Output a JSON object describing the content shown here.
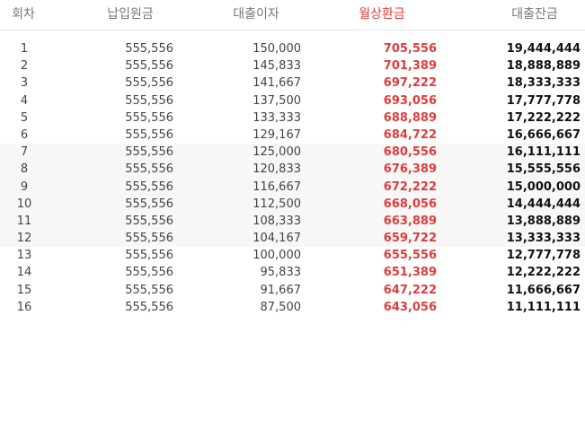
{
  "headers": {
    "round": "회차",
    "principal": "납입원금",
    "interest": "대출이자",
    "payment": "월상환금",
    "balance": "대출잔금"
  },
  "colors": {
    "payment_accent": "#e03c3c",
    "shaded_band": "#f7f7f7"
  },
  "rows": [
    {
      "round": "1",
      "principal": "555,556",
      "interest": "150,000",
      "payment": "705,556",
      "balance": "19,444,444"
    },
    {
      "round": "2",
      "principal": "555,556",
      "interest": "145,833",
      "payment": "701,389",
      "balance": "18,888,889"
    },
    {
      "round": "3",
      "principal": "555,556",
      "interest": "141,667",
      "payment": "697,222",
      "balance": "18,333,333"
    },
    {
      "round": "4",
      "principal": "555,556",
      "interest": "137,500",
      "payment": "693,056",
      "balance": "17,777,778"
    },
    {
      "round": "5",
      "principal": "555,556",
      "interest": "133,333",
      "payment": "688,889",
      "balance": "17,222,222"
    },
    {
      "round": "6",
      "principal": "555,556",
      "interest": "129,167",
      "payment": "684,722",
      "balance": "16,666,667"
    },
    {
      "round": "7",
      "principal": "555,556",
      "interest": "125,000",
      "payment": "680,556",
      "balance": "16,111,111"
    },
    {
      "round": "8",
      "principal": "555,556",
      "interest": "120,833",
      "payment": "676,389",
      "balance": "15,555,556"
    },
    {
      "round": "9",
      "principal": "555,556",
      "interest": "116,667",
      "payment": "672,222",
      "balance": "15,000,000"
    },
    {
      "round": "10",
      "principal": "555,556",
      "interest": "112,500",
      "payment": "668,056",
      "balance": "14,444,444"
    },
    {
      "round": "11",
      "principal": "555,556",
      "interest": "108,333",
      "payment": "663,889",
      "balance": "13,888,889"
    },
    {
      "round": "12",
      "principal": "555,556",
      "interest": "104,167",
      "payment": "659,722",
      "balance": "13,333,333"
    },
    {
      "round": "13",
      "principal": "555,556",
      "interest": "100,000",
      "payment": "655,556",
      "balance": "12,777,778"
    },
    {
      "round": "14",
      "principal": "555,556",
      "interest": "95,833",
      "payment": "651,389",
      "balance": "12,222,222"
    },
    {
      "round": "15",
      "principal": "555,556",
      "interest": "91,667",
      "payment": "647,222",
      "balance": "11,666,667"
    },
    {
      "round": "16",
      "principal": "555,556",
      "interest": "87,500",
      "payment": "643,056",
      "balance": "11,111,111"
    }
  ]
}
